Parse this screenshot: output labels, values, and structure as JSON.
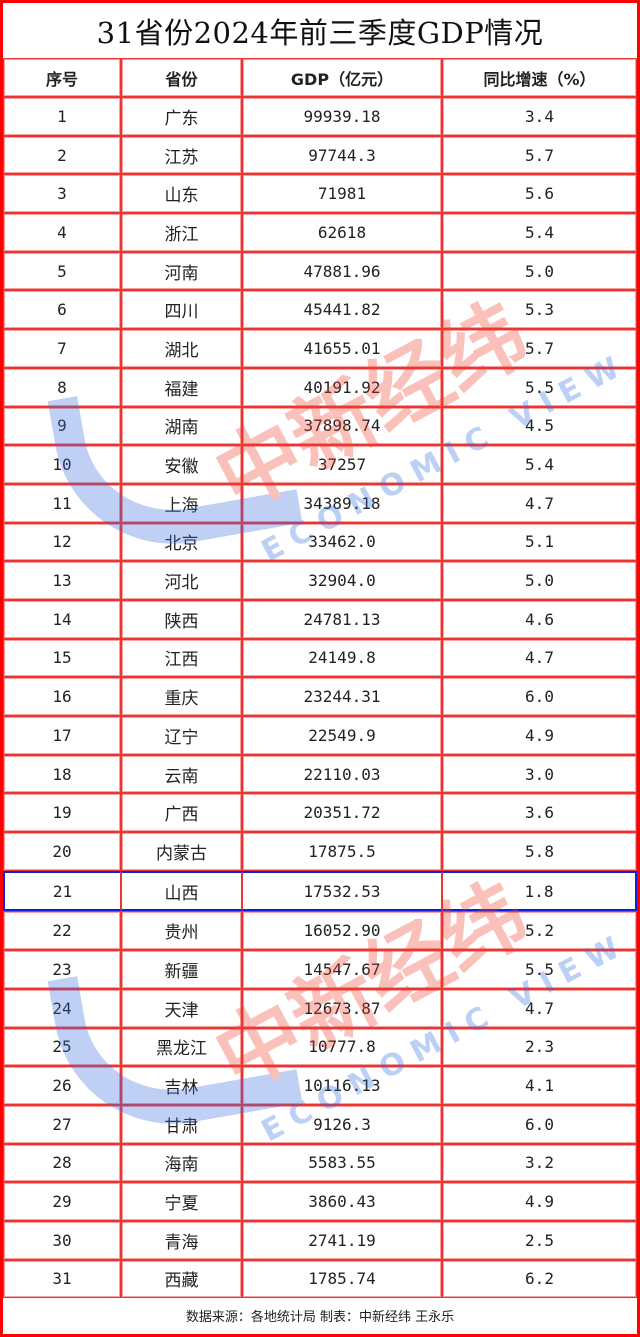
{
  "title": "31省份2024年前三季度GDP情况",
  "headers": [
    "序号",
    "省份",
    "GDP（亿元）",
    "同比增速（%）"
  ],
  "rows": [
    [
      "1",
      "广东",
      "99939.18",
      "3.4"
    ],
    [
      "2",
      "江苏",
      "97744.3",
      "5.7"
    ],
    [
      "3",
      "山东",
      "71981",
      "5.6"
    ],
    [
      "4",
      "浙江",
      "62618",
      "5.4"
    ],
    [
      "5",
      "河南",
      "47881.96",
      "5.0"
    ],
    [
      "6",
      "四川",
      "45441.82",
      "5.3"
    ],
    [
      "7",
      "湖北",
      "41655.01",
      "5.7"
    ],
    [
      "8",
      "福建",
      "40191.92",
      "5.5"
    ],
    [
      "9",
      "湖南",
      "37898.74",
      "4.5"
    ],
    [
      "10",
      "安徽",
      "37257",
      "5.4"
    ],
    [
      "11",
      "上海",
      "34389.18",
      "4.7"
    ],
    [
      "12",
      "北京",
      "33462.0",
      "5.1"
    ],
    [
      "13",
      "河北",
      "32904.0",
      "5.0"
    ],
    [
      "14",
      "陕西",
      "24781.13",
      "4.6"
    ],
    [
      "15",
      "江西",
      "24149.8",
      "4.7"
    ],
    [
      "16",
      "重庆",
      "23244.31",
      "6.0"
    ],
    [
      "17",
      "辽宁",
      "22549.9",
      "4.9"
    ],
    [
      "18",
      "云南",
      "22110.03",
      "3.0"
    ],
    [
      "19",
      "广西",
      "20351.72",
      "3.6"
    ],
    [
      "20",
      "内蒙古",
      "17875.5",
      "5.8"
    ],
    [
      "21",
      "山西",
      "17532.53",
      "1.8"
    ],
    [
      "22",
      "贵州",
      "16052.90",
      "5.2"
    ],
    [
      "23",
      "新疆",
      "14547.67",
      "5.5"
    ],
    [
      "24",
      "天津",
      "12673.87",
      "4.7"
    ],
    [
      "25",
      "黑龙江",
      "10777.8",
      "2.3"
    ],
    [
      "26",
      "吉林",
      "10116.13",
      "4.1"
    ],
    [
      "27",
      "甘肃",
      "9126.3",
      "6.0"
    ],
    [
      "28",
      "海南",
      "5583.55",
      "3.2"
    ],
    [
      "29",
      "宁夏",
      "3860.43",
      "4.9"
    ],
    [
      "30",
      "青海",
      "2741.19",
      "2.5"
    ],
    [
      "31",
      "西藏",
      "1785.74",
      "6.2"
    ]
  ],
  "highlighted_row": "21",
  "footer": "数据来源：各地统计局 制表：中新经纬 王永乐",
  "watermark": {
    "cn": "中新经纬",
    "en": "ECONOMIC VIEW"
  },
  "colors": {
    "border": "#ff0000",
    "highlight": "#1020e0"
  }
}
